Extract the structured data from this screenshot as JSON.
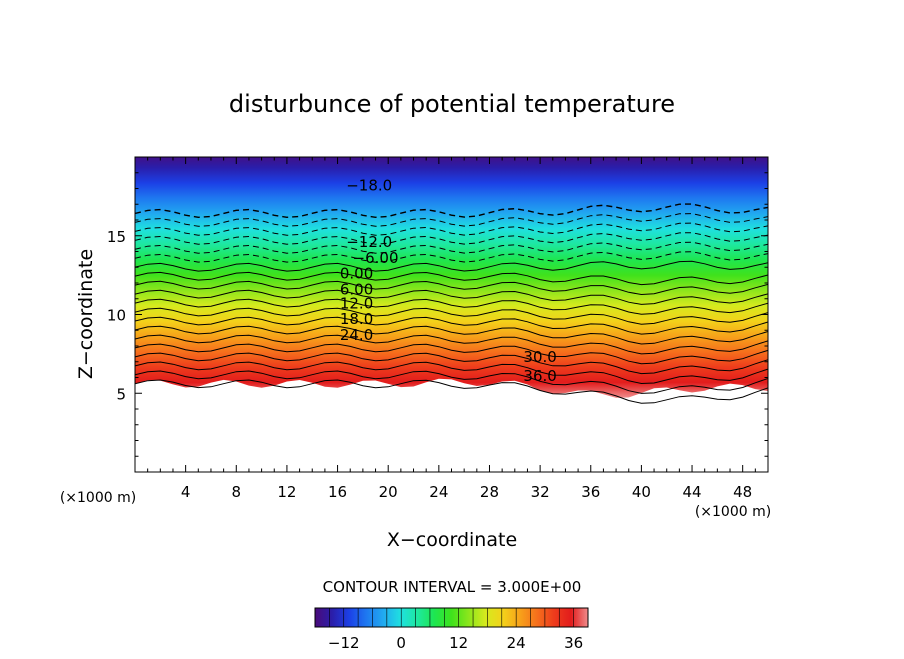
{
  "chart_data": {
    "type": "heatmap",
    "title": "disturbunce of potential temperature",
    "xlabel": "X−coordinate",
    "ylabel": "Z−coordinate",
    "x_unit_left": "(×1000 m)",
    "x_unit_right": "(×1000 m)",
    "xlim": [
      0,
      50
    ],
    "ylim": [
      0,
      20
    ],
    "x_ticks": [
      "4",
      "8",
      "12",
      "16",
      "20",
      "24",
      "28",
      "32",
      "36",
      "40",
      "44",
      "48"
    ],
    "y_ticks": [
      "5",
      "10",
      "15"
    ],
    "contour_interval_text": "CONTOUR INTERVAL = 3.000E+00",
    "contour_interval": 3,
    "value_range": [
      -18,
      39
    ],
    "contour_labels": [
      {
        "text": "−18.0",
        "x": 18.5,
        "z": 18.2
      },
      {
        "text": "−12.0",
        "x": 18.5,
        "z": 14.6
      },
      {
        "text": "−6.00",
        "x": 19.0,
        "z": 13.6
      },
      {
        "text": "0.00",
        "x": 17.5,
        "z": 12.6
      },
      {
        "text": "6.00",
        "x": 17.5,
        "z": 11.6
      },
      {
        "text": "12.0",
        "x": 17.5,
        "z": 10.7
      },
      {
        "text": "18.0",
        "x": 17.5,
        "z": 9.7
      },
      {
        "text": "24.0",
        "x": 17.5,
        "z": 8.7
      },
      {
        "text": "30.0",
        "x": 32.0,
        "z": 7.3
      },
      {
        "text": "36.0",
        "x": 32.0,
        "z": 6.1
      }
    ],
    "colorbar_ticks": [
      "−12",
      "0",
      "12",
      "24",
      "36"
    ],
    "colormap": [
      "#4a0a7a",
      "#2a1eaa",
      "#1c40e6",
      "#1e78f0",
      "#21a9f0",
      "#1fe0e0",
      "#1ee8a0",
      "#1ee650",
      "#3fe21c",
      "#8ce61c",
      "#d6ea1e",
      "#f3d21a",
      "#f7a21a",
      "#f6701c",
      "#ee3c1c",
      "#e21c1c",
      "#f08c8c"
    ]
  }
}
